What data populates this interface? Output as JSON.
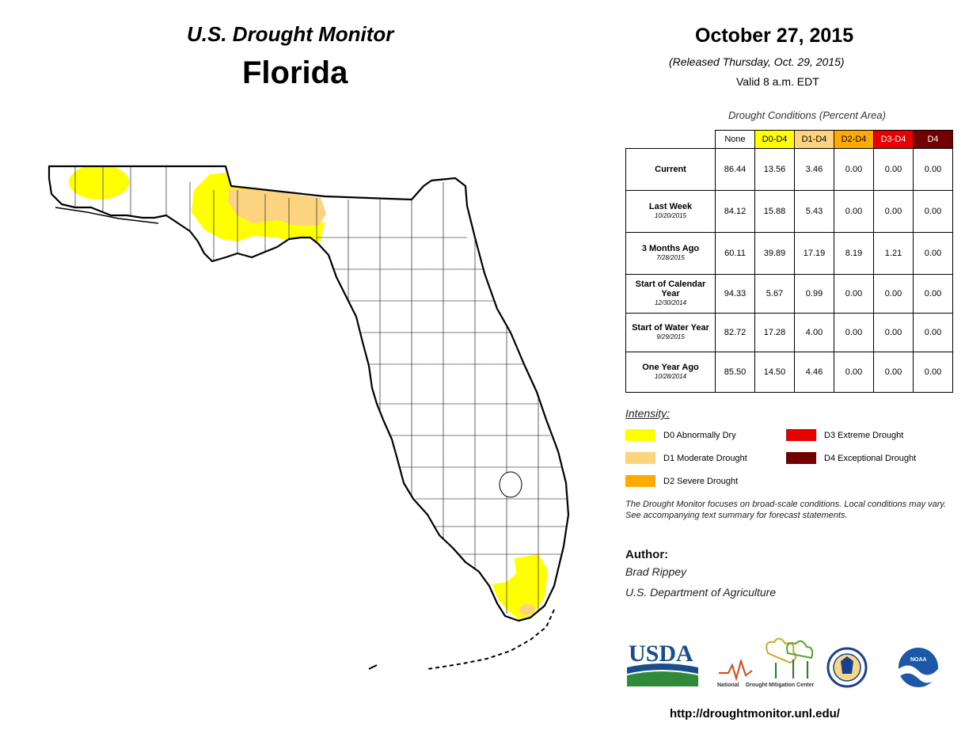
{
  "header": {
    "title": "U.S. Drought Monitor",
    "state": "Florida",
    "date": "October 27, 2015",
    "released": "(Released Thursday, Oct. 29, 2015)",
    "valid": "Valid 8 a.m. EDT"
  },
  "table": {
    "caption": "Drought Conditions (Percent Area)",
    "columns": [
      "None",
      "D0-D4",
      "D1-D4",
      "D2-D4",
      "D3-D4",
      "D4"
    ],
    "column_colors": [
      "#ffffff",
      "#ffff00",
      "#fcd37f",
      "#ffaa00",
      "#e60000",
      "#730000"
    ],
    "rows": [
      {
        "label": "Current",
        "sub": "",
        "values": [
          "86.44",
          "13.56",
          "3.46",
          "0.00",
          "0.00",
          "0.00"
        ]
      },
      {
        "label": "Last Week",
        "sub": "10/20/2015",
        "values": [
          "84.12",
          "15.88",
          "5.43",
          "0.00",
          "0.00",
          "0.00"
        ]
      },
      {
        "label": "3 Months Ago",
        "sub": "7/28/2015",
        "values": [
          "60.11",
          "39.89",
          "17.19",
          "8.19",
          "1.21",
          "0.00"
        ]
      },
      {
        "label": "Start of Calendar Year",
        "sub": "12/30/2014",
        "values": [
          "94.33",
          "5.67",
          "0.99",
          "0.00",
          "0.00",
          "0.00"
        ]
      },
      {
        "label": "Start of Water Year",
        "sub": "9/29/2015",
        "values": [
          "82.72",
          "17.28",
          "4.00",
          "0.00",
          "0.00",
          "0.00"
        ]
      },
      {
        "label": "One Year Ago",
        "sub": "10/28/2014",
        "values": [
          "85.50",
          "14.50",
          "4.46",
          "0.00",
          "0.00",
          "0.00"
        ]
      }
    ]
  },
  "legend": {
    "title": "Intensity:",
    "items": [
      {
        "label": "D0 Abnormally Dry",
        "color": "#ffff00"
      },
      {
        "label": "D1 Moderate Drought",
        "color": "#fcd37f"
      },
      {
        "label": "D2 Severe Drought",
        "color": "#ffaa00"
      },
      {
        "label": "D3 Extreme Drought",
        "color": "#e60000"
      },
      {
        "label": "D4 Exceptional Drought",
        "color": "#730000"
      }
    ]
  },
  "note": "The Drought Monitor focuses on broad-scale conditions. Local conditions may vary. See accompanying text summary for forecast statements.",
  "author": {
    "label": "Author:",
    "name": "Brad Rippey",
    "org": "U.S. Department of Agriculture"
  },
  "logos": {
    "usda": "USDA",
    "ndmc_left": "National",
    "ndmc_right": "Drought Mitigation Center",
    "noaa": "NOAA"
  },
  "map": {
    "drought_regions": [
      {
        "level": "D0",
        "area": "western Panhandle",
        "color": "#ffff00"
      },
      {
        "level": "D0",
        "area": "central Panhandle",
        "color": "#ffff00"
      },
      {
        "level": "D1",
        "area": "Big Bend region",
        "color": "#fcd37f"
      },
      {
        "level": "D0",
        "area": "southern peninsula",
        "color": "#ffff00"
      }
    ]
  },
  "url": "http://droughtmonitor.unl.edu/"
}
